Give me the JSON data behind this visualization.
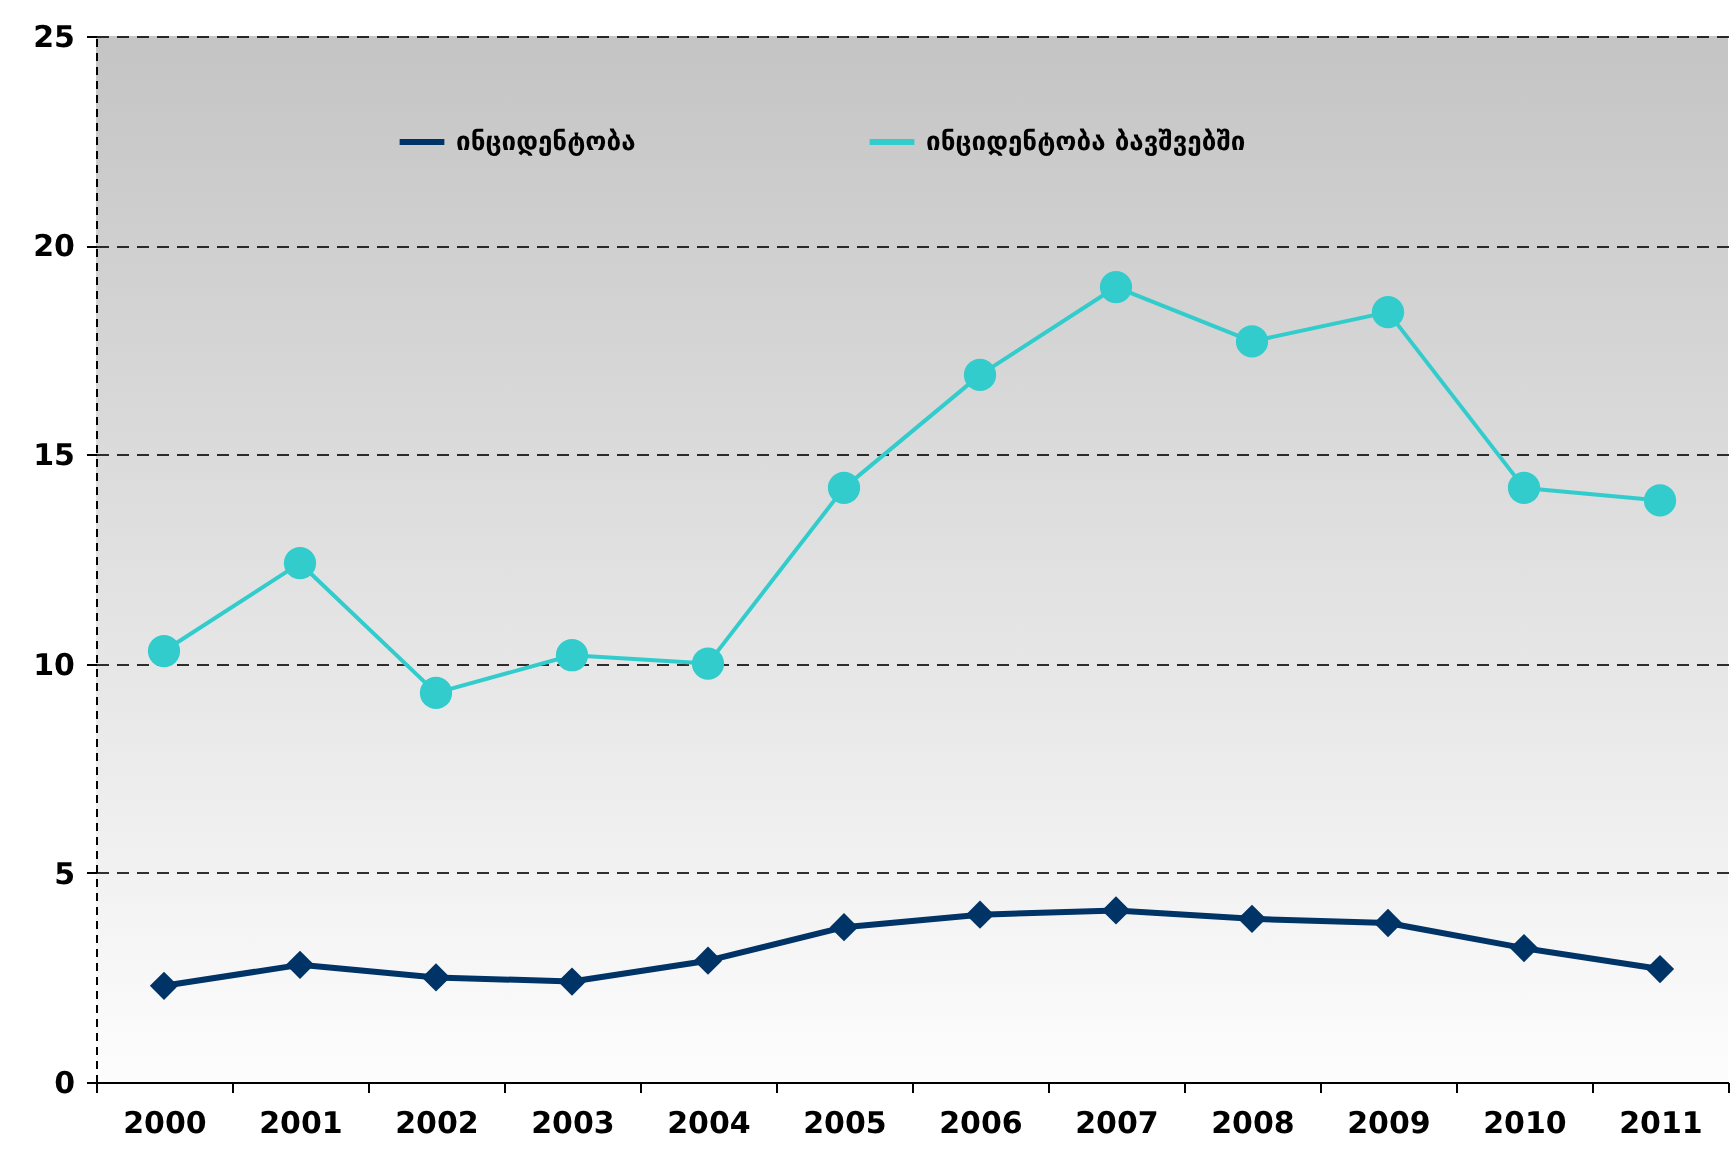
{
  "chart_data": {
    "type": "line",
    "categories": [
      "2000",
      "2001",
      "2002",
      "2003",
      "2004",
      "2005",
      "2006",
      "2007",
      "2008",
      "2009",
      "2010",
      "2011"
    ],
    "series": [
      {
        "name": "ინციდენტობა",
        "color": "#003366",
        "marker": "diamond",
        "values": [
          2.3,
          2.8,
          2.5,
          2.4,
          2.9,
          3.7,
          4.0,
          4.1,
          3.9,
          3.8,
          3.2,
          2.7
        ]
      },
      {
        "name": "ინციდენტობა ბავშვებში",
        "color": "#33cccc",
        "marker": "circle",
        "values": [
          10.3,
          12.4,
          9.3,
          10.2,
          10.0,
          14.2,
          16.9,
          19.0,
          17.7,
          18.4,
          14.2,
          13.9
        ]
      }
    ],
    "ylim": [
      0,
      25
    ],
    "yticks": [
      0,
      5,
      10,
      15,
      20,
      25
    ],
    "grid": "y",
    "legend": "top",
    "line_style": "solid"
  }
}
